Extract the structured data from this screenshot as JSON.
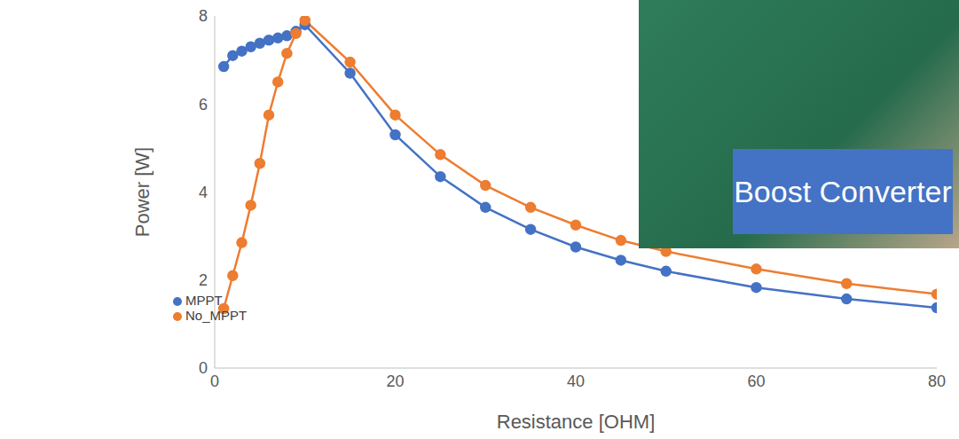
{
  "chart_data": {
    "type": "line",
    "x_label": "Resistance [OHM]",
    "y_label": "Power [W]",
    "x": [
      1,
      2,
      3,
      4,
      5,
      6,
      7,
      8,
      9,
      10,
      15,
      20,
      25,
      30,
      35,
      40,
      45,
      50,
      60,
      70,
      80
    ],
    "series": [
      {
        "name": "MPPT",
        "color": "#4472c4",
        "marker": "circle",
        "values": [
          6.85,
          7.1,
          7.2,
          7.3,
          7.38,
          7.45,
          7.5,
          7.55,
          7.65,
          7.8,
          6.7,
          5.3,
          4.35,
          3.65,
          3.15,
          2.75,
          2.45,
          2.2,
          1.83,
          1.57,
          1.37
        ]
      },
      {
        "name": "No_MPPT",
        "color": "#ed7d31",
        "marker": "circle",
        "values": [
          1.35,
          2.1,
          2.85,
          3.7,
          4.65,
          5.75,
          6.5,
          7.15,
          7.6,
          7.9,
          6.95,
          5.75,
          4.85,
          4.15,
          3.65,
          3.25,
          2.9,
          2.65,
          2.25,
          1.92,
          1.68
        ]
      }
    ],
    "xlim": [
      0,
      80
    ],
    "xticks": [
      0,
      20,
      40,
      60,
      80
    ],
    "ylim": [
      0,
      8
    ],
    "yticks": [
      0,
      2,
      4,
      6,
      8
    ],
    "grid": false,
    "legend": "lower left",
    "annotations": [
      "Boost Converter"
    ]
  }
}
